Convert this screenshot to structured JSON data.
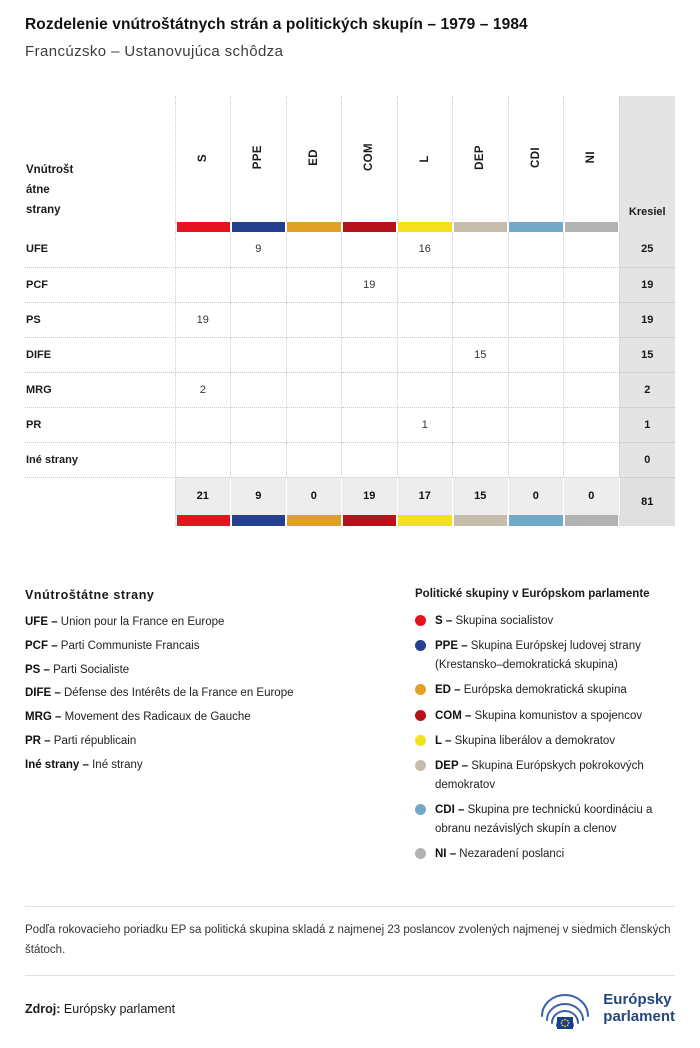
{
  "header": {
    "title": "Rozdelenie vnútroštátnych strán a politických skupín – 1979 – 1984",
    "subtitle": "Francúzsko – Ustanovujúca schôdza"
  },
  "table": {
    "row_axis_label": "Vnútroštátne strany",
    "seats_header": "Kresiel",
    "groups": [
      {
        "code": "S",
        "color": "#e4131d"
      },
      {
        "code": "PPE",
        "color": "#24408f"
      },
      {
        "code": "ED",
        "color": "#e1a126"
      },
      {
        "code": "COM",
        "color": "#b5121b"
      },
      {
        "code": "L",
        "color": "#f3e11d"
      },
      {
        "code": "DEP",
        "color": "#c6bcab"
      },
      {
        "code": "CDI",
        "color": "#72a9c6"
      },
      {
        "code": "NI",
        "color": "#b2b2b2"
      }
    ],
    "rows": [
      {
        "party": "UFE",
        "values": [
          "",
          "9",
          "",
          "",
          "16",
          "",
          "",
          ""
        ],
        "seats": "25"
      },
      {
        "party": "PCF",
        "values": [
          "",
          "",
          "",
          "19",
          "",
          "",
          "",
          ""
        ],
        "seats": "19"
      },
      {
        "party": "PS",
        "values": [
          "19",
          "",
          "",
          "",
          "",
          "",
          "",
          ""
        ],
        "seats": "19"
      },
      {
        "party": "DIFE",
        "values": [
          "",
          "",
          "",
          "",
          "",
          "15",
          "",
          ""
        ],
        "seats": "15"
      },
      {
        "party": "MRG",
        "values": [
          "2",
          "",
          "",
          "",
          "",
          "",
          "",
          ""
        ],
        "seats": "2"
      },
      {
        "party": "PR",
        "values": [
          "",
          "",
          "",
          "",
          "1",
          "",
          "",
          ""
        ],
        "seats": "1"
      },
      {
        "party": "Iné strany",
        "values": [
          "",
          "",
          "",
          "",
          "",
          "",
          "",
          ""
        ],
        "seats": "0"
      }
    ],
    "totals": {
      "values": [
        "21",
        "9",
        "0",
        "19",
        "17",
        "15",
        "0",
        "0"
      ],
      "seats": "81"
    }
  },
  "chart_data": {
    "type": "table",
    "title": "Rozdelenie vnútroštátnych strán a politických skupín – 1979 – 1984",
    "subtitle": "Francúzsko – Ustanovujúca schôdza",
    "columns": [
      "S",
      "PPE",
      "ED",
      "COM",
      "L",
      "DEP",
      "CDI",
      "NI",
      "Kresiel"
    ],
    "row_labels": [
      "UFE",
      "PCF",
      "PS",
      "DIFE",
      "MRG",
      "PR",
      "Iné strany"
    ],
    "rows": [
      [
        null,
        9,
        null,
        null,
        16,
        null,
        null,
        null,
        25
      ],
      [
        null,
        null,
        null,
        19,
        null,
        null,
        null,
        null,
        19
      ],
      [
        19,
        null,
        null,
        null,
        null,
        null,
        null,
        null,
        19
      ],
      [
        null,
        null,
        null,
        null,
        null,
        15,
        null,
        null,
        15
      ],
      [
        2,
        null,
        null,
        null,
        null,
        null,
        null,
        null,
        2
      ],
      [
        null,
        null,
        null,
        null,
        1,
        null,
        null,
        null,
        1
      ],
      [
        null,
        null,
        null,
        null,
        null,
        null,
        null,
        null,
        0
      ]
    ],
    "totals": [
      21,
      9,
      0,
      19,
      17,
      15,
      0,
      0,
      81
    ],
    "group_colors": {
      "S": "#e4131d",
      "PPE": "#24408f",
      "ED": "#e1a126",
      "COM": "#b5121b",
      "L": "#f3e11d",
      "DEP": "#c6bcab",
      "CDI": "#72a9c6",
      "NI": "#b2b2b2"
    }
  },
  "legend_parties": {
    "title": "Vnútroštátne strany",
    "items": [
      {
        "abbr": "UFE",
        "name": "Union pour la France en Europe"
      },
      {
        "abbr": "PCF",
        "name": "Parti Communiste Francais"
      },
      {
        "abbr": "PS",
        "name": "Parti Socialiste"
      },
      {
        "abbr": "DIFE",
        "name": "Défense des Intérêts de la France en Europe"
      },
      {
        "abbr": "MRG",
        "name": "Movement des Radicaux de Gauche"
      },
      {
        "abbr": "PR",
        "name": "Parti républicain"
      },
      {
        "abbr": "Iné strany",
        "name": "Iné strany"
      }
    ]
  },
  "legend_groups": {
    "title": "Politické skupiny v Európskom parlamente",
    "items": [
      {
        "abbr": "S",
        "name": "Skupina socialistov",
        "color": "#e4131d"
      },
      {
        "abbr": "PPE",
        "name": "Skupina Európskej ludovej strany (Krestansko–demokratická skupina)",
        "color": "#24408f"
      },
      {
        "abbr": "ED",
        "name": "Európska demokratická skupina",
        "color": "#e1a126"
      },
      {
        "abbr": "COM",
        "name": "Skupina komunistov a spojencov",
        "color": "#b5121b"
      },
      {
        "abbr": "L",
        "name": "Skupina liberálov a demokratov",
        "color": "#f3e11d"
      },
      {
        "abbr": "DEP",
        "name": "Skupina Európskych pokrokových demokratov",
        "color": "#c6bcab"
      },
      {
        "abbr": "CDI",
        "name": "Skupina pre technickú koordináciu a obranu nezávislých skupín a clenov",
        "color": "#72a9c6"
      },
      {
        "abbr": "NI",
        "name": "Nezaradení poslanci",
        "color": "#b2b2b2"
      }
    ]
  },
  "footer": {
    "note": "Podľa rokovacieho poriadku EP sa politická skupina skladá z najmenej 23 poslancov zvolených najmenej v siedmich členských štátoch.",
    "source_label": "Zdroj:",
    "source_value": "Európsky parlament",
    "logo_line1": "Európsky",
    "logo_line2": "parlament"
  }
}
